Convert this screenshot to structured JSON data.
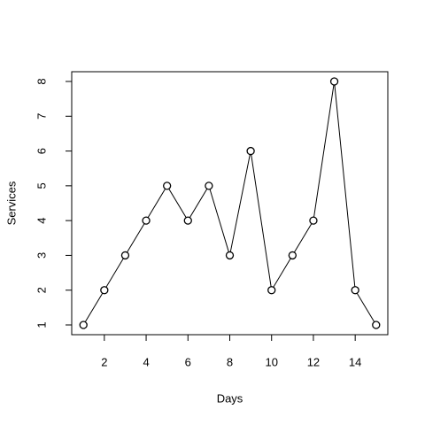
{
  "chart_data": {
    "type": "line",
    "x_label": "Days",
    "y_label": "Services",
    "x": [
      1,
      2,
      3,
      4,
      5,
      6,
      7,
      8,
      9,
      10,
      11,
      12,
      13,
      14,
      15
    ],
    "y": [
      1,
      2,
      3,
      4,
      5,
      4,
      5,
      3,
      6,
      2,
      3,
      4,
      8,
      2,
      1
    ],
    "color": "#000000",
    "markers": true,
    "xlim": [
      0.44,
      15.56
    ],
    "ylim": [
      0.72,
      8.28
    ],
    "xticks": [
      2,
      4,
      6,
      8,
      10,
      12,
      14
    ],
    "yticks": [
      1,
      2,
      3,
      4,
      5,
      6,
      7,
      8
    ]
  }
}
